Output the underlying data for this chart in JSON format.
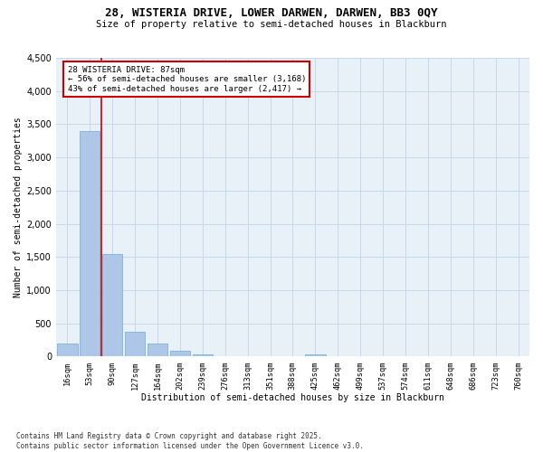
{
  "title_line1": "28, WISTERIA DRIVE, LOWER DARWEN, DARWEN, BB3 0QY",
  "title_line2": "Size of property relative to semi-detached houses in Blackburn",
  "xlabel": "Distribution of semi-detached houses by size in Blackburn",
  "ylabel": "Number of semi-detached properties",
  "bin_labels": [
    "16sqm",
    "53sqm",
    "90sqm",
    "127sqm",
    "164sqm",
    "202sqm",
    "239sqm",
    "276sqm",
    "313sqm",
    "351sqm",
    "388sqm",
    "425sqm",
    "462sqm",
    "499sqm",
    "537sqm",
    "574sqm",
    "611sqm",
    "648sqm",
    "686sqm",
    "723sqm",
    "760sqm"
  ],
  "bar_heights": [
    200,
    3400,
    1550,
    380,
    200,
    90,
    30,
    0,
    0,
    0,
    0,
    30,
    0,
    0,
    0,
    0,
    0,
    0,
    0,
    0,
    0
  ],
  "bar_color": "#aec6e8",
  "bar_edge_color": "#6aaed6",
  "annotation_text": "28 WISTERIA DRIVE: 87sqm\n← 56% of semi-detached houses are smaller (3,168)\n43% of semi-detached houses are larger (2,417) →",
  "ylim": [
    0,
    4500
  ],
  "yticks": [
    0,
    500,
    1000,
    1500,
    2000,
    2500,
    3000,
    3500,
    4000,
    4500
  ],
  "red_line_color": "#cc0000",
  "annotation_box_color": "#ffffff",
  "annotation_box_edge": "#cc0000",
  "grid_color": "#c8d8e8",
  "bg_color": "#e8f0f8",
  "footer_text": "Contains HM Land Registry data © Crown copyright and database right 2025.\nContains public sector information licensed under the Open Government Licence v3.0."
}
